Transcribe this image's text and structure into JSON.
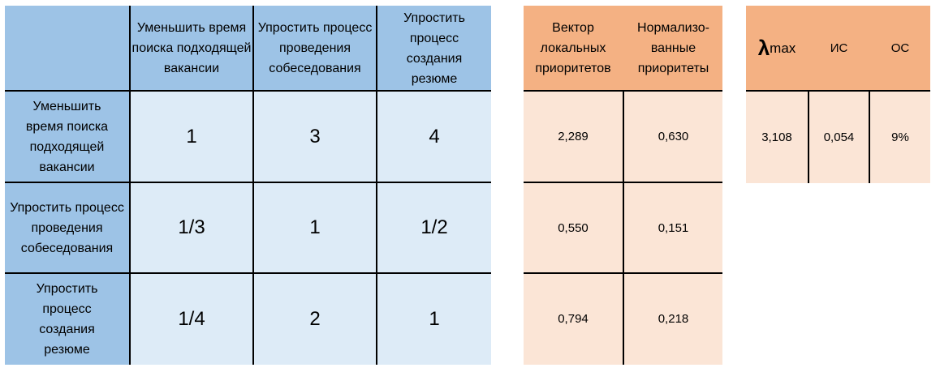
{
  "matrix": {
    "header": [
      "Уменьшить время поиска подходящей вакансии",
      "Упростить процесс проведения собеседования",
      "Упростить процесс создания резюме"
    ],
    "rows": [
      {
        "label": "Уменьшить время поиска подходящей вакансии",
        "values": [
          "1",
          "3",
          "4"
        ]
      },
      {
        "label": "Упростить процесс проведения собеседования",
        "values": [
          "1/3",
          "1",
          "1/2"
        ]
      },
      {
        "label": "Упростить процесс создания резюме",
        "values": [
          "1/4",
          "2",
          "1"
        ]
      }
    ]
  },
  "priorities": {
    "header": [
      "Вектор локальных приоритетов",
      "Нормализо-ванные приоритеты"
    ],
    "rows": [
      [
        "2,289",
        "0,630"
      ],
      [
        "0,550",
        "0,151"
      ],
      [
        "0,794",
        "0,218"
      ]
    ]
  },
  "consistency": {
    "lambda_symbol": "λ",
    "lambda_sub": "max",
    "header_is": "ИС",
    "header_os": "ОС",
    "values": [
      "3,108",
      "0,054",
      "9%"
    ]
  },
  "colors": {
    "header_blue": "#9dc3e6",
    "body_blue": "#ddebf7",
    "header_orange": "#f4b183",
    "body_orange": "#fbe5d6"
  }
}
